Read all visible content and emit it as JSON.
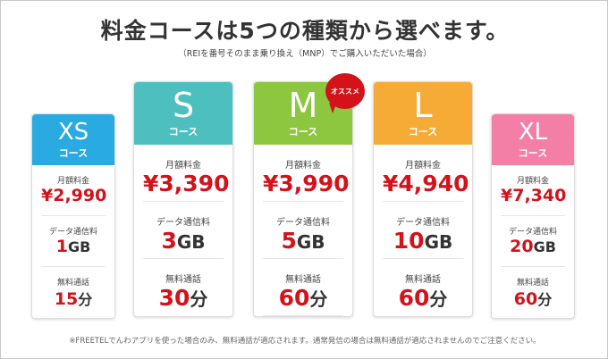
{
  "title": "料金コースは5つの種類から選べます。",
  "subtitle": "（REIを番号そのまま乗り換え（MNP）でご購入いただいた場合）",
  "labels": {
    "monthly": "月額料金",
    "data": "データ通信料",
    "calls": "無料通話",
    "course": "コース",
    "yen": "¥"
  },
  "plans": [
    {
      "name": "XS",
      "price": "2,990",
      "data": "1",
      "data_unit": "GB",
      "calls": "15",
      "calls_unit": "分",
      "color": "#29abe2"
    },
    {
      "name": "S",
      "price": "3,390",
      "data": "3",
      "data_unit": "GB",
      "calls": "30",
      "calls_unit": "分",
      "color": "#4dbfbf"
    },
    {
      "name": "M",
      "price": "3,990",
      "data": "5",
      "data_unit": "GB",
      "calls": "60",
      "calls_unit": "分",
      "color": "#8dc63f",
      "badge": "オススメ"
    },
    {
      "name": "L",
      "price": "4,940",
      "data": "10",
      "data_unit": "GB",
      "calls": "60",
      "calls_unit": "分",
      "color": "#f5ab35"
    },
    {
      "name": "XL",
      "price": "7,340",
      "data": "20",
      "data_unit": "GB",
      "calls": "60",
      "calls_unit": "分",
      "color": "#f37ea6"
    }
  ],
  "footnote": "※FREETELでんわアプリを使った場合のみ、無料通話が適応されます。通常発信の場合は無料通話が適応されませんのでご注意ください。"
}
